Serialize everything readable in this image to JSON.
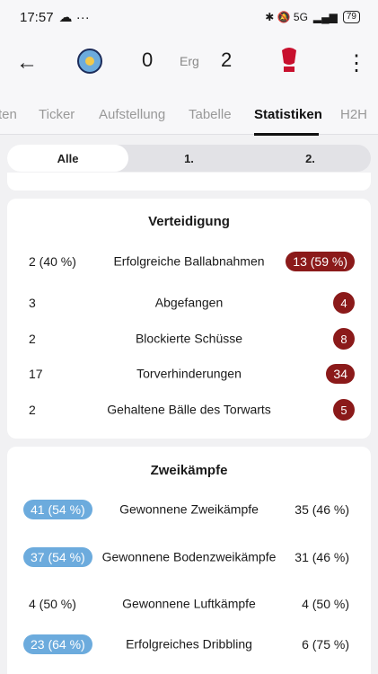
{
  "status_bar": {
    "time": "17:57",
    "extras": "☁ ···",
    "icons": "✱ 🔕 5G",
    "battery": "79"
  },
  "header": {
    "home_score": "0",
    "status": "Erg",
    "away_score": "2"
  },
  "tabs": [
    {
      "label": "ten"
    },
    {
      "label": "Ticker"
    },
    {
      "label": "Aufstellung"
    },
    {
      "label": "Tabelle"
    },
    {
      "label": "Statistiken"
    },
    {
      "label": "H2H"
    }
  ],
  "segments": [
    {
      "label": "Alle"
    },
    {
      "label": "1."
    },
    {
      "label": "2."
    }
  ],
  "defense": {
    "title": "Verteidigung",
    "rows": [
      {
        "left": "2 (40 %)",
        "label": "Erfolgreiche Ballabnahmen",
        "right": "13 (59 %)"
      },
      {
        "left": "3",
        "label": "Abgefangen",
        "right": "4"
      },
      {
        "left": "2",
        "label": "Blockierte Schüsse",
        "right": "8"
      },
      {
        "left": "17",
        "label": "Torverhinderungen",
        "right": "34"
      },
      {
        "left": "2",
        "label": "Gehaltene Bälle des Torwarts",
        "right": "5"
      }
    ]
  },
  "duels": {
    "title": "Zweikämpfe",
    "rows": [
      {
        "left": "41 (54 %)",
        "label": "Gewonnene Zweikämpfe",
        "right": "35 (46 %)"
      },
      {
        "left": "37 (54 %)",
        "label": "Gewonnene Bodenzweikämpfe",
        "right": "31 (46 %)"
      },
      {
        "left": "4 (50 %)",
        "label": "Gewonnene Luftkämpfe",
        "right": "4 (50 %)"
      },
      {
        "left": "23 (64 %)",
        "label": "Erfolgreiches Dribbling",
        "right": "6 (75 %)"
      }
    ]
  },
  "colors": {
    "away_highlight": "#8b1a1a",
    "home_highlight": "#6cabdd"
  }
}
